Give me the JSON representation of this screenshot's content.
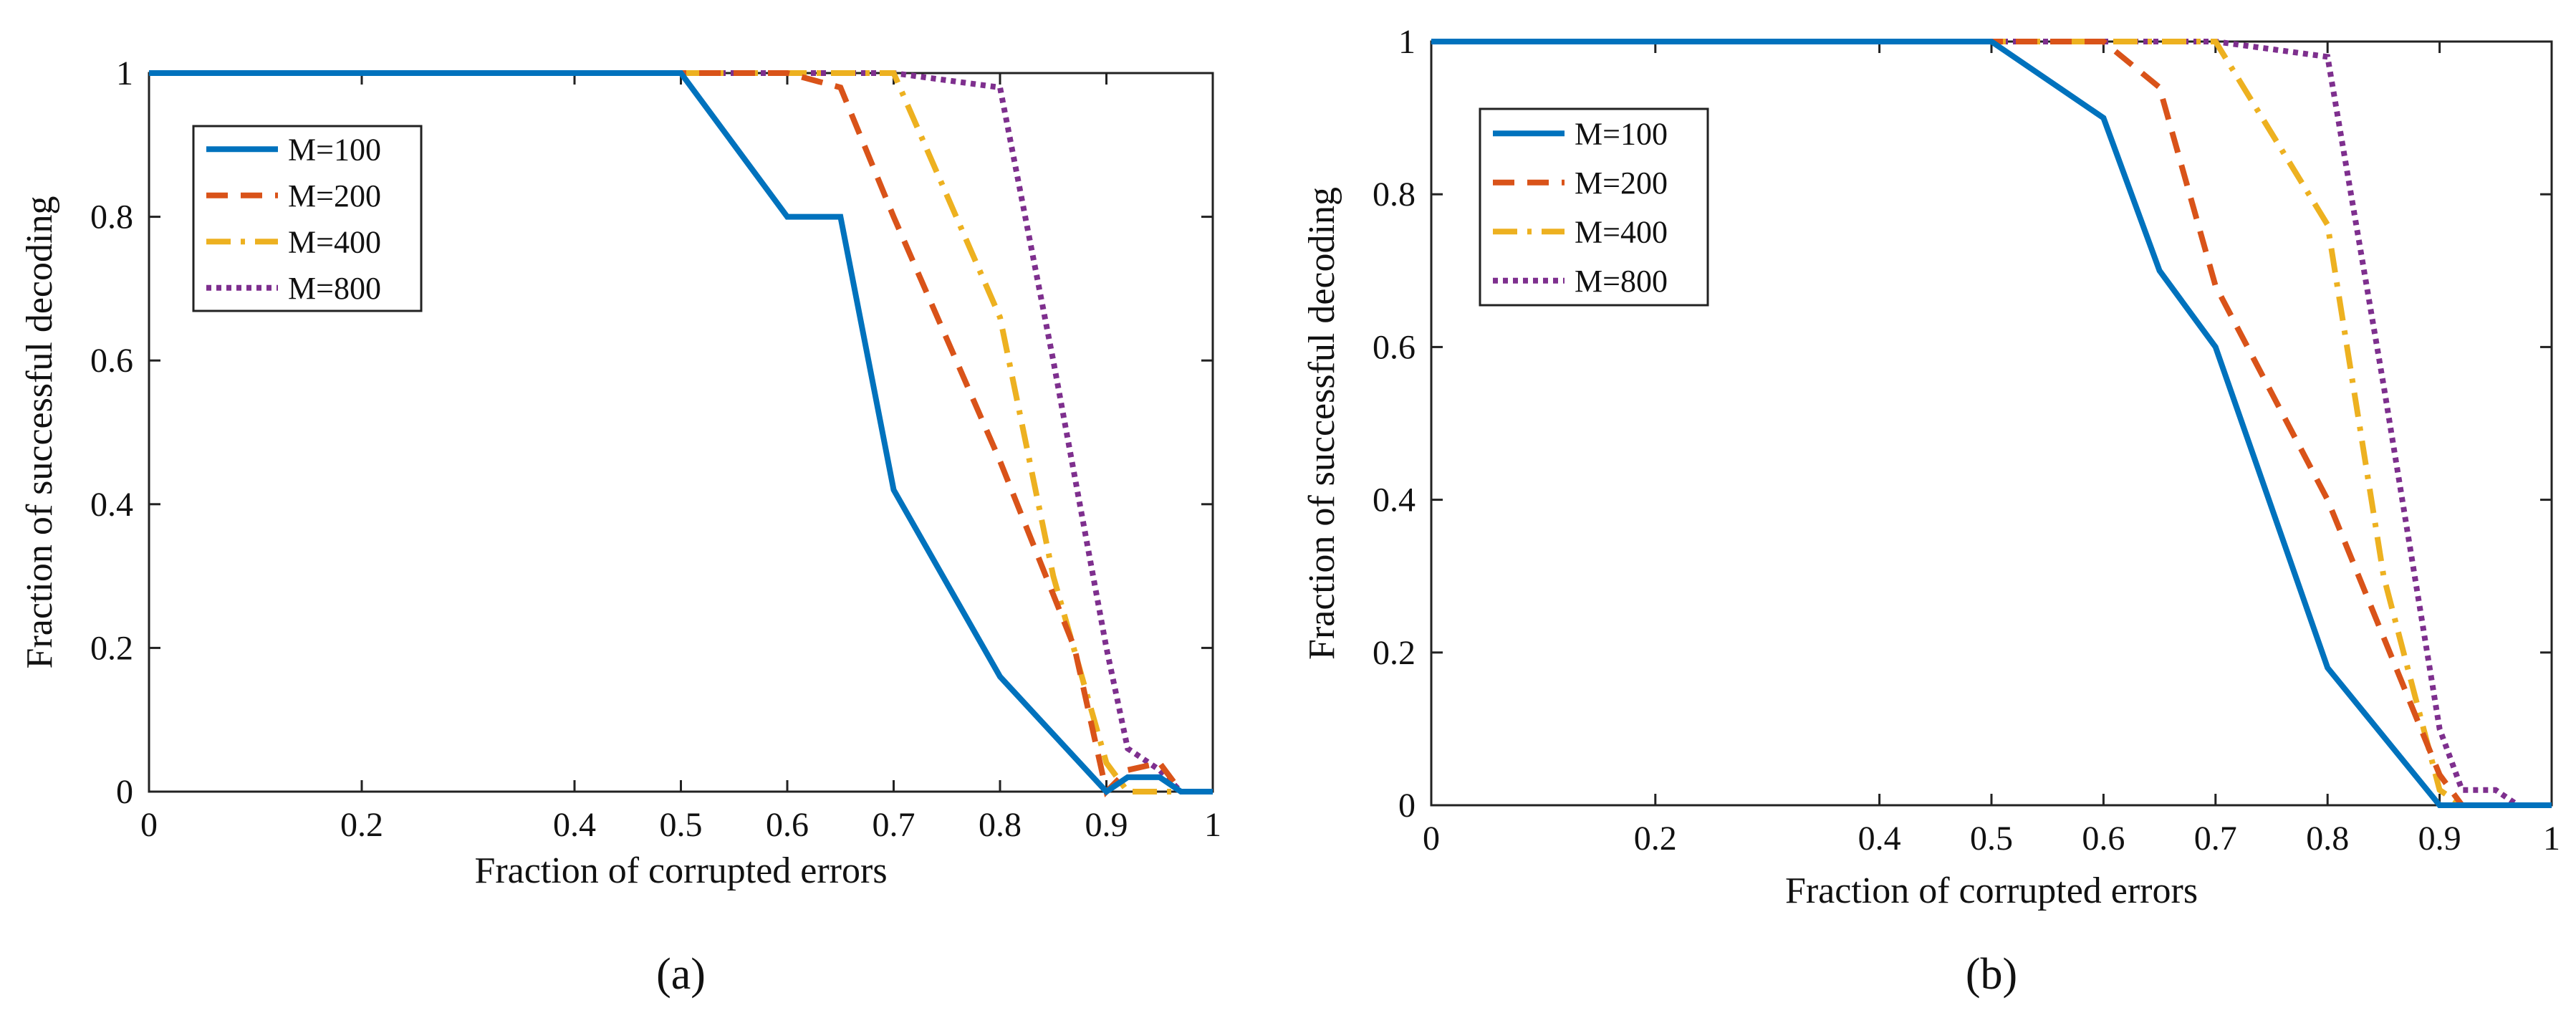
{
  "chart_data": [
    {
      "type": "line",
      "caption": "(a)",
      "xlabel": "Fraction of corrupted errors",
      "ylabel": "Fraction of successful decoding",
      "xlim": [
        0,
        1
      ],
      "ylim": [
        0,
        1
      ],
      "xticks": [
        0,
        0.2,
        0.4,
        0.5,
        0.6,
        0.7,
        0.8,
        0.9,
        1
      ],
      "xtick_labels": [
        "0",
        "0.2",
        "0.4",
        "0.5",
        "0.6",
        "0.7",
        "0.8",
        "0.9",
        "1"
      ],
      "yticks": [
        0,
        0.2,
        0.4,
        0.6,
        0.8,
        1
      ],
      "ytick_labels": [
        "0",
        "0.2",
        "0.4",
        "0.6",
        "0.8",
        "1"
      ],
      "grid": false,
      "legend_position": "upper-left",
      "series": [
        {
          "name": "M=100",
          "color": "#0072BD",
          "style": "solid",
          "x": [
            0,
            0.5,
            0.6,
            0.65,
            0.7,
            0.8,
            0.9,
            0.92,
            0.95,
            0.97,
            1
          ],
          "y": [
            1,
            1,
            0.8,
            0.8,
            0.42,
            0.16,
            0,
            0.02,
            0.02,
            0,
            0
          ]
        },
        {
          "name": "M=200",
          "color": "#D95319",
          "style": "dashed",
          "x": [
            0,
            0.5,
            0.6,
            0.65,
            0.7,
            0.8,
            0.87,
            0.9,
            0.92,
            0.95,
            0.97,
            1
          ],
          "y": [
            1,
            1,
            1,
            0.98,
            0.8,
            0.46,
            0.2,
            0,
            0.03,
            0.04,
            0,
            0
          ]
        },
        {
          "name": "M=400",
          "color": "#EDB120",
          "style": "dashdot",
          "x": [
            0,
            0.5,
            0.6,
            0.7,
            0.8,
            0.85,
            0.9,
            0.92,
            1
          ],
          "y": [
            1,
            1,
            1,
            1,
            0.66,
            0.3,
            0.04,
            0,
            0
          ]
        },
        {
          "name": "M=800",
          "color": "#7E2F8E",
          "style": "dotted",
          "x": [
            0,
            0.5,
            0.6,
            0.7,
            0.8,
            0.85,
            0.9,
            0.92,
            0.95,
            0.97,
            1
          ],
          "y": [
            1,
            1,
            1,
            1,
            0.98,
            0.6,
            0.2,
            0.06,
            0.03,
            0,
            0
          ]
        }
      ]
    },
    {
      "type": "line",
      "caption": "(b)",
      "xlabel": "Fraction of corrupted errors",
      "ylabel": "Fraction of successful decoding",
      "xlim": [
        0,
        1
      ],
      "ylim": [
        0,
        1
      ],
      "xticks": [
        0,
        0.2,
        0.4,
        0.5,
        0.6,
        0.7,
        0.8,
        0.9,
        1
      ],
      "xtick_labels": [
        "0",
        "0.2",
        "0.4",
        "0.5",
        "0.6",
        "0.7",
        "0.8",
        "0.9",
        "1"
      ],
      "yticks": [
        0,
        0.2,
        0.4,
        0.6,
        0.8,
        1
      ],
      "ytick_labels": [
        "0",
        "0.2",
        "0.4",
        "0.6",
        "0.8",
        "1"
      ],
      "grid": false,
      "legend_position": "upper-left",
      "series": [
        {
          "name": "M=100",
          "color": "#0072BD",
          "style": "solid",
          "x": [
            0,
            0.5,
            0.6,
            0.65,
            0.7,
            0.8,
            0.9,
            0.92,
            1
          ],
          "y": [
            1,
            1,
            0.9,
            0.7,
            0.6,
            0.18,
            0,
            0,
            0
          ]
        },
        {
          "name": "M=200",
          "color": "#D95319",
          "style": "dashed",
          "x": [
            0,
            0.5,
            0.6,
            0.65,
            0.7,
            0.8,
            0.9,
            0.92,
            1
          ],
          "y": [
            1,
            1,
            1,
            0.94,
            0.68,
            0.4,
            0.04,
            0,
            0
          ]
        },
        {
          "name": "M=400",
          "color": "#EDB120",
          "style": "dashdot",
          "x": [
            0,
            0.5,
            0.6,
            0.7,
            0.8,
            0.85,
            0.9,
            0.92,
            1
          ],
          "y": [
            1,
            1,
            1,
            1,
            0.76,
            0.3,
            0.02,
            0,
            0
          ]
        },
        {
          "name": "M=800",
          "color": "#7E2F8E",
          "style": "dotted",
          "x": [
            0,
            0.5,
            0.6,
            0.7,
            0.8,
            0.85,
            0.9,
            0.92,
            0.95,
            0.97,
            1
          ],
          "y": [
            1,
            1,
            1,
            1,
            0.98,
            0.55,
            0.1,
            0.02,
            0.02,
            0,
            0
          ]
        }
      ]
    }
  ]
}
